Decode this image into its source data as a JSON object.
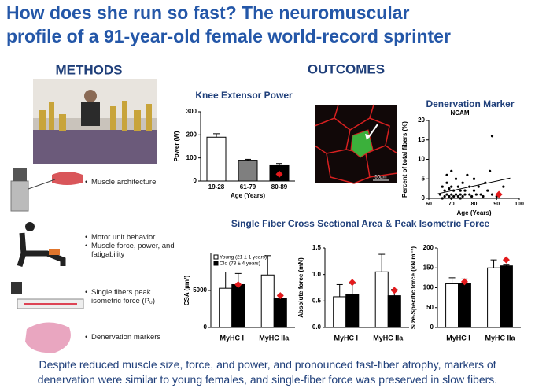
{
  "header": {
    "title_lines": [
      "How does she run so fast? The neuromuscular",
      "profile of a 91-year-old female world-record sprinter"
    ]
  },
  "methods": {
    "heading": "METHODS",
    "items": [
      "Muscle architecture",
      "Motor unit behavior",
      "Muscle force, power, and fatigability",
      "Single fibers peak isometric force (P₀)",
      "Denervation markers"
    ]
  },
  "outcomes": {
    "heading": "OUTCOMES",
    "section_title": "Single Fiber Cross Sectional Area & Peak Isometric Force",
    "scale_bar": "50µm"
  },
  "footer_lines": [
    "Despite reduced muscle size, force, and power, and pronounced fast-fiber atrophy, markers of",
    "denervation were similar to young females, and single-fiber force was preserved in slow fibers."
  ],
  "chart_data": [
    {
      "type": "bar",
      "title": "Knee Extensor Power",
      "categories": [
        "19-28",
        "61-79",
        "80-89"
      ],
      "values": [
        190,
        90,
        70
      ],
      "errors": [
        15,
        4,
        6
      ],
      "colors": [
        "#ffffff",
        "#7f7f7f",
        "#000000"
      ],
      "subject": {
        "color": "#e31a1c",
        "values": [
          null,
          null,
          30
        ]
      },
      "ylabel": "Power (W)",
      "xlabel": "Age (Years)",
      "ylim": [
        0,
        300
      ],
      "yticks": [
        0,
        100,
        200,
        300
      ]
    },
    {
      "type": "scatter",
      "title": "Denervation Marker",
      "annotation": "NCAM",
      "ylabel": "Percent of total fibers (%)",
      "xlabel": "Age (Years)",
      "color": "#000000",
      "x": [
        65,
        66,
        67,
        67,
        68,
        68,
        69,
        69,
        70,
        70,
        70,
        71,
        71,
        72,
        72,
        73,
        73,
        74,
        74,
        75,
        75,
        76,
        76,
        77,
        78,
        78,
        79,
        80,
        80,
        81,
        82,
        83,
        84,
        85,
        86,
        87,
        88,
        88,
        90,
        93,
        66,
        68,
        70,
        72,
        74
      ],
      "y": [
        1,
        3,
        0.5,
        2,
        1,
        4,
        0.5,
        2.5,
        1,
        3,
        7,
        0.5,
        2,
        1,
        5,
        0.5,
        3,
        1,
        2,
        0.5,
        4,
        1,
        2,
        6,
        1,
        3,
        0.5,
        2,
        5,
        1,
        3,
        1,
        0.5,
        4,
        2,
        7,
        16,
        1,
        0.5,
        3,
        0,
        6,
        0,
        1,
        0
      ],
      "trendline": {
        "x": [
          64,
          96
        ],
        "y": [
          1.2,
          5.2
        ]
      },
      "subject": {
        "color": "#e31a1c",
        "x": [
          91
        ],
        "y": [
          1
        ]
      },
      "xlim": [
        60,
        100
      ],
      "xticks": [
        60,
        70,
        80,
        90,
        100
      ],
      "ylim": [
        0,
        20
      ],
      "yticks": [
        0,
        5,
        10,
        15,
        20
      ]
    },
    {
      "type": "grouped_bar",
      "categories": [
        "MyHC I",
        "MyHC IIa"
      ],
      "ylabel": "CSA (µm²)",
      "legend": "upper left",
      "series": [
        {
          "name": "Young (21 ± 1 years)",
          "color": "#ffffff",
          "values": [
            5300,
            7100
          ],
          "errors": [
            2200,
            2600
          ]
        },
        {
          "name": "Old (73 ± 4 years)",
          "color": "#000000",
          "values": [
            5800,
            3900
          ],
          "errors": [
            1500,
            600
          ]
        }
      ],
      "subject": {
        "color": "#e31a1c",
        "values": [
          5800,
          4300
        ]
      },
      "ylim": [
        0,
        10000
      ],
      "yticks": [
        0,
        5000
      ]
    },
    {
      "type": "grouped_bar",
      "categories": [
        "MyHC I",
        "MyHC IIa"
      ],
      "ylabel": "Absolute force (mN)",
      "series": [
        {
          "color": "#ffffff",
          "values": [
            0.58,
            1.05
          ],
          "errors": [
            0.23,
            0.33
          ]
        },
        {
          "color": "#000000",
          "values": [
            0.63,
            0.6
          ],
          "errors": [
            0.2,
            0.12
          ]
        }
      ],
      "subject": {
        "color": "#e31a1c",
        "values": [
          0.85,
          0.7
        ]
      },
      "ylim": [
        0,
        1.5
      ],
      "yticks": [
        {
          "value": 0,
          "label": "0.0"
        },
        0.5,
        {
          "value": 1,
          "label": "1.0"
        },
        1.5
      ]
    },
    {
      "type": "grouped_bar",
      "categories": [
        "MyHC I",
        "MyHC IIa"
      ],
      "ylabel": "Size-Specific force (kN m⁻²)",
      "series": [
        {
          "color": "#ffffff",
          "values": [
            110,
            150
          ],
          "errors": [
            15,
            20
          ]
        },
        {
          "color": "#000000",
          "values": [
            110,
            155
          ],
          "errors": [
            12,
            2
          ]
        }
      ],
      "subject": {
        "color": "#e31a1c",
        "values": [
          115,
          170
        ]
      },
      "ylim": [
        0,
        200
      ],
      "yticks": [
        0,
        50,
        100,
        150,
        200
      ]
    }
  ]
}
